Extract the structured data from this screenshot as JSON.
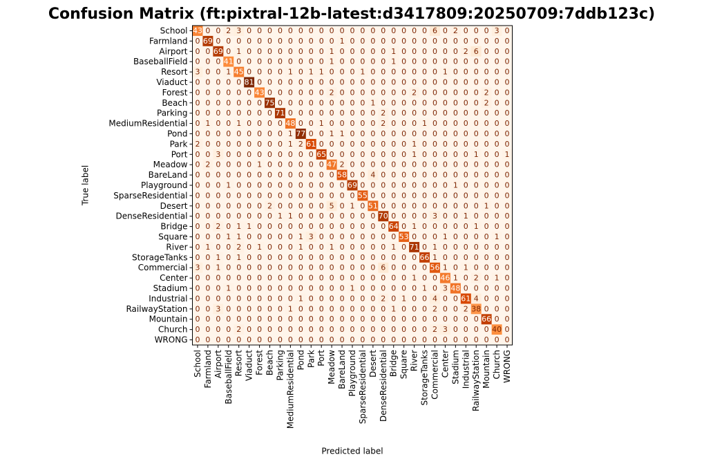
{
  "chart_data": {
    "type": "heatmap",
    "title": "Confusion Matrix (ft:pixtral-12b-latest:d3417809:20250709:7ddb123c)",
    "xlabel": "Predicted label",
    "ylabel": "True label",
    "colormap": [
      "#fff5eb",
      "#fdd0a2",
      "#fd8d3c",
      "#d94801",
      "#7f2704"
    ],
    "x_categories": [
      "School",
      "Farmland",
      "Airport",
      "BaseballField",
      "Resort",
      "Viaduct",
      "Forest",
      "Beach",
      "Parking",
      "MediumResidential",
      "Pond",
      "Park",
      "Port",
      "Meadow",
      "BareLand",
      "Playground",
      "SparseResidential",
      "Desert",
      "DenseResidential",
      "Bridge",
      "Square",
      "River",
      "StorageTanks",
      "Commercial",
      "Center",
      "Stadium",
      "Industrial",
      "RailwayStation",
      "Mountain",
      "Church",
      "WRONG"
    ],
    "y_categories": [
      "School",
      "Farmland",
      "Airport",
      "BaseballField",
      "Resort",
      "Viaduct",
      "Forest",
      "Beach",
      "Parking",
      "MediumResidential",
      "Pond",
      "Park",
      "Port",
      "Meadow",
      "BareLand",
      "Playground",
      "SparseResidential",
      "Desert",
      "DenseResidential",
      "Bridge",
      "Square",
      "River",
      "StorageTanks",
      "Commercial",
      "Center",
      "Stadium",
      "Industrial",
      "RailwayStation",
      "Mountain",
      "Church",
      "WRONG"
    ],
    "values": [
      [
        43,
        0,
        0,
        2,
        3,
        0,
        0,
        0,
        0,
        0,
        0,
        0,
        0,
        0,
        0,
        0,
        0,
        0,
        0,
        0,
        0,
        0,
        0,
        6,
        0,
        2,
        0,
        0,
        0,
        3,
        0
      ],
      [
        0,
        69,
        0,
        0,
        0,
        0,
        0,
        0,
        0,
        0,
        0,
        0,
        0,
        0,
        1,
        0,
        0,
        0,
        0,
        0,
        0,
        0,
        0,
        0,
        0,
        0,
        0,
        0,
        0,
        0,
        0
      ],
      [
        0,
        0,
        69,
        0,
        1,
        0,
        0,
        0,
        0,
        0,
        0,
        0,
        0,
        1,
        0,
        0,
        0,
        0,
        0,
        1,
        0,
        0,
        0,
        0,
        0,
        0,
        2,
        6,
        0,
        0,
        0
      ],
      [
        0,
        0,
        0,
        41,
        0,
        0,
        0,
        0,
        0,
        0,
        0,
        0,
        0,
        1,
        0,
        0,
        0,
        0,
        0,
        1,
        0,
        0,
        0,
        0,
        0,
        0,
        0,
        0,
        0,
        0,
        0
      ],
      [
        3,
        0,
        0,
        1,
        45,
        0,
        0,
        0,
        0,
        1,
        0,
        1,
        1,
        0,
        0,
        0,
        1,
        0,
        0,
        0,
        0,
        0,
        0,
        0,
        1,
        0,
        0,
        0,
        0,
        0,
        0
      ],
      [
        0,
        0,
        0,
        0,
        0,
        81,
        0,
        0,
        0,
        0,
        0,
        0,
        0,
        0,
        0,
        0,
        0,
        0,
        0,
        0,
        0,
        0,
        0,
        0,
        0,
        0,
        0,
        0,
        0,
        0,
        0
      ],
      [
        0,
        0,
        0,
        0,
        0,
        0,
        43,
        0,
        0,
        0,
        0,
        0,
        0,
        2,
        0,
        0,
        0,
        0,
        0,
        0,
        0,
        2,
        0,
        0,
        0,
        0,
        0,
        0,
        2,
        0,
        0
      ],
      [
        0,
        0,
        0,
        0,
        0,
        0,
        0,
        75,
        0,
        0,
        0,
        0,
        0,
        0,
        0,
        0,
        0,
        1,
        0,
        0,
        0,
        0,
        0,
        0,
        0,
        0,
        0,
        0,
        2,
        0,
        0
      ],
      [
        0,
        0,
        0,
        0,
        0,
        0,
        0,
        0,
        71,
        0,
        0,
        0,
        0,
        0,
        0,
        0,
        0,
        0,
        2,
        0,
        0,
        0,
        0,
        0,
        0,
        0,
        0,
        0,
        0,
        0,
        0
      ],
      [
        0,
        1,
        0,
        0,
        1,
        0,
        0,
        0,
        0,
        48,
        0,
        0,
        1,
        0,
        0,
        0,
        0,
        0,
        2,
        0,
        0,
        0,
        1,
        0,
        0,
        0,
        0,
        0,
        0,
        0,
        0
      ],
      [
        0,
        0,
        0,
        0,
        0,
        0,
        0,
        0,
        0,
        1,
        77,
        0,
        0,
        1,
        1,
        0,
        0,
        0,
        0,
        0,
        0,
        0,
        0,
        0,
        0,
        0,
        0,
        0,
        0,
        0,
        0
      ],
      [
        2,
        0,
        0,
        0,
        0,
        0,
        0,
        0,
        0,
        1,
        2,
        61,
        0,
        0,
        0,
        0,
        0,
        0,
        0,
        0,
        0,
        1,
        0,
        0,
        0,
        0,
        0,
        0,
        0,
        0,
        0
      ],
      [
        0,
        0,
        3,
        0,
        0,
        0,
        0,
        0,
        0,
        0,
        0,
        0,
        65,
        0,
        0,
        0,
        0,
        0,
        0,
        0,
        0,
        1,
        0,
        0,
        0,
        0,
        0,
        1,
        0,
        0,
        1
      ],
      [
        0,
        2,
        0,
        0,
        0,
        0,
        1,
        0,
        0,
        0,
        0,
        0,
        0,
        47,
        2,
        0,
        0,
        0,
        0,
        0,
        0,
        0,
        0,
        0,
        0,
        0,
        0,
        0,
        0,
        0,
        0
      ],
      [
        0,
        0,
        0,
        0,
        0,
        0,
        0,
        0,
        0,
        0,
        0,
        0,
        0,
        0,
        58,
        0,
        0,
        4,
        0,
        0,
        0,
        0,
        0,
        0,
        0,
        0,
        0,
        0,
        0,
        0,
        0
      ],
      [
        0,
        0,
        0,
        1,
        0,
        0,
        0,
        0,
        0,
        0,
        0,
        0,
        0,
        0,
        0,
        69,
        0,
        0,
        0,
        0,
        0,
        0,
        0,
        0,
        0,
        1,
        0,
        0,
        0,
        0,
        0
      ],
      [
        0,
        0,
        0,
        0,
        0,
        0,
        0,
        0,
        0,
        0,
        0,
        0,
        0,
        0,
        0,
        0,
        55,
        0,
        0,
        0,
        0,
        0,
        0,
        0,
        0,
        0,
        0,
        0,
        0,
        0,
        0
      ],
      [
        0,
        0,
        0,
        0,
        0,
        0,
        0,
        2,
        0,
        0,
        0,
        0,
        0,
        5,
        0,
        1,
        0,
        51,
        0,
        0,
        0,
        0,
        0,
        0,
        0,
        0,
        0,
        0,
        1,
        0,
        0
      ],
      [
        0,
        0,
        0,
        0,
        0,
        0,
        0,
        0,
        1,
        1,
        0,
        0,
        0,
        0,
        0,
        0,
        0,
        0,
        70,
        0,
        0,
        0,
        0,
        3,
        0,
        0,
        1,
        0,
        0,
        0,
        0
      ],
      [
        0,
        0,
        2,
        0,
        1,
        1,
        0,
        0,
        0,
        0,
        0,
        0,
        0,
        0,
        0,
        0,
        0,
        0,
        0,
        64,
        0,
        1,
        0,
        0,
        0,
        0,
        0,
        1,
        0,
        0,
        0
      ],
      [
        0,
        0,
        0,
        1,
        1,
        0,
        0,
        0,
        0,
        0,
        1,
        3,
        0,
        0,
        0,
        0,
        0,
        0,
        0,
        0,
        53,
        0,
        0,
        0,
        1,
        0,
        0,
        0,
        0,
        1,
        0
      ],
      [
        0,
        1,
        0,
        0,
        2,
        0,
        1,
        0,
        0,
        0,
        1,
        0,
        0,
        1,
        0,
        0,
        0,
        0,
        0,
        1,
        0,
        71,
        0,
        1,
        0,
        0,
        0,
        0,
        0,
        0,
        0
      ],
      [
        0,
        0,
        1,
        0,
        1,
        0,
        0,
        0,
        0,
        0,
        0,
        0,
        0,
        0,
        0,
        0,
        0,
        0,
        0,
        0,
        0,
        0,
        66,
        1,
        0,
        0,
        0,
        0,
        0,
        0,
        0
      ],
      [
        3,
        0,
        1,
        0,
        0,
        0,
        0,
        0,
        0,
        0,
        0,
        0,
        0,
        0,
        0,
        0,
        0,
        0,
        6,
        0,
        0,
        0,
        0,
        56,
        1,
        0,
        1,
        0,
        0,
        0,
        0
      ],
      [
        0,
        0,
        0,
        0,
        0,
        0,
        0,
        0,
        0,
        0,
        0,
        0,
        0,
        0,
        0,
        0,
        0,
        0,
        0,
        0,
        0,
        1,
        0,
        0,
        46,
        1,
        0,
        2,
        0,
        1,
        0
      ],
      [
        0,
        0,
        0,
        1,
        0,
        0,
        0,
        0,
        0,
        0,
        0,
        0,
        0,
        0,
        0,
        1,
        0,
        0,
        0,
        0,
        0,
        0,
        1,
        0,
        3,
        48,
        0,
        0,
        0,
        0,
        0
      ],
      [
        0,
        0,
        0,
        0,
        0,
        0,
        0,
        0,
        0,
        0,
        1,
        0,
        0,
        0,
        0,
        0,
        0,
        0,
        2,
        0,
        1,
        0,
        0,
        4,
        0,
        0,
        61,
        4,
        0,
        0,
        0
      ],
      [
        0,
        0,
        3,
        0,
        0,
        0,
        0,
        0,
        0,
        1,
        0,
        0,
        0,
        0,
        0,
        0,
        0,
        0,
        0,
        1,
        0,
        0,
        0,
        2,
        0,
        0,
        2,
        38,
        0,
        0,
        0
      ],
      [
        0,
        0,
        0,
        0,
        0,
        0,
        0,
        0,
        0,
        0,
        0,
        0,
        0,
        0,
        0,
        0,
        0,
        0,
        0,
        0,
        0,
        0,
        0,
        0,
        0,
        0,
        0,
        0,
        66,
        0,
        0
      ],
      [
        0,
        0,
        0,
        0,
        2,
        0,
        0,
        0,
        0,
        0,
        0,
        0,
        0,
        0,
        0,
        0,
        0,
        0,
        0,
        0,
        0,
        0,
        0,
        2,
        3,
        0,
        0,
        0,
        0,
        40,
        0
      ],
      [
        0,
        0,
        0,
        0,
        0,
        0,
        0,
        0,
        0,
        0,
        0,
        0,
        0,
        0,
        0,
        0,
        0,
        0,
        0,
        0,
        0,
        0,
        0,
        0,
        0,
        0,
        0,
        0,
        0,
        0,
        0
      ]
    ]
  }
}
